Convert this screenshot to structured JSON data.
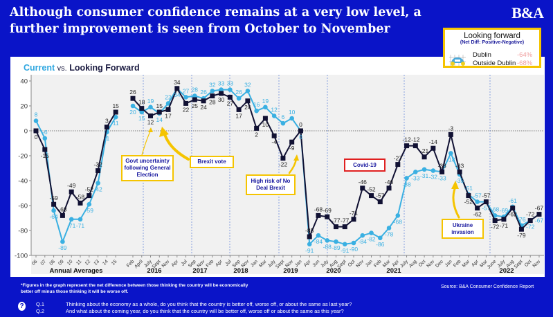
{
  "header": {
    "title": "Although consumer confidence remains at a very low level, a further improvement is seen from October to November",
    "logo": "B&A"
  },
  "legend_box": {
    "title": "Looking forward",
    "subtitle": "(Net Diff: Positive-Negative)",
    "rows": [
      {
        "label": "Dublin",
        "value": "-64%"
      },
      {
        "label": "Outside Dublin",
        "value": "-68%"
      }
    ],
    "icon": "car-icon"
  },
  "chart_subtitle": {
    "current": "Current",
    "vs": "vs.",
    "forward": "Looking Forward"
  },
  "chart_data": {
    "type": "line",
    "ylim": [
      -100,
      40
    ],
    "yticks": [
      40,
      20,
      0,
      -20,
      -40,
      -60,
      -80,
      -100
    ],
    "grid": false,
    "colors": {
      "current": "#111133",
      "forward": "#3ab0e2"
    },
    "annual": {
      "label": "Annual Averages",
      "categories": [
        "06",
        "07",
        "08",
        "09",
        "10",
        "11",
        "12",
        "13",
        "14",
        "15"
      ],
      "current": [
        0,
        -15,
        -59,
        -68,
        -49,
        -58,
        -52,
        -32,
        3,
        15
      ],
      "forward": [
        8,
        -6,
        -64,
        -89,
        -71,
        -71,
        -59,
        -42,
        -1,
        11
      ]
    },
    "monthly": {
      "categories": [
        "Feb",
        "April",
        "July",
        "Sept",
        "Nov",
        "Apr",
        "Jul",
        "Sep",
        "Nov",
        "Feb",
        "Apr",
        "Jul",
        "Sep",
        "Nov",
        "Jan",
        "Mar",
        "July",
        "Sept",
        "Nov",
        "Jan",
        "Apr",
        "Jun",
        "July",
        "Aug",
        "Sept",
        "Oct",
        "Nov",
        "Jan",
        "Feb",
        "Mar",
        "Apr",
        "July",
        "Aug",
        "Oct",
        "Nov",
        "Dec",
        "Jan",
        "Feb",
        "Mar",
        "Apr",
        "Mar",
        "June",
        "July",
        "Aug",
        "Sept",
        "Oct",
        "Nov"
      ],
      "current": [
        26,
        18,
        12,
        15,
        17,
        34,
        22,
        25,
        24,
        28,
        30,
        27,
        17,
        24,
        2,
        10,
        -4,
        -22,
        -9,
        0,
        -85,
        -68,
        -69,
        -77,
        -77,
        -71,
        -46,
        -52,
        -57,
        -46,
        -27,
        -12,
        -12,
        -21,
        -14,
        -33,
        -3,
        -33,
        -52,
        -62,
        -57,
        -72,
        -71,
        -62,
        -79,
        -72,
        -67
      ],
      "forward": [
        20,
        15,
        19,
        14,
        22,
        34,
        27,
        28,
        26,
        32,
        33,
        33,
        26,
        32,
        16,
        19,
        12,
        6,
        10,
        0,
        -91,
        -84,
        -88,
        -89,
        -91,
        -90,
        -84,
        -82,
        -86,
        -78,
        -68,
        -38,
        -33,
        -31,
        -32,
        -33,
        -18,
        -35,
        -51,
        -57,
        -57,
        -68,
        -69,
        -61,
        -76,
        -72,
        -67
      ]
    },
    "years": [
      "2016",
      "2017",
      "2018",
      "2019",
      "2020",
      "2021",
      "2022"
    ],
    "annotations": [
      "Govt uncertainty following General Election",
      "Brexit vote",
      "High risk of No Deal Brexit",
      "Covid-19",
      "Ukraine invasion"
    ]
  },
  "footer": {
    "note_line1": "*Figures in the graph represent the net difference between those thinking the country will be economically",
    "note_line2": "better off minus those thinking it will be worse off.",
    "source": "Source: B&A Consumer Confidence Report",
    "q1_label": "Q.1",
    "q1": "Thinking about the economy as a whole, do you think that the country is better off, worse off, or about the same as last year?",
    "q2_label": "Q.2",
    "q2": "And what about the coming year, do you think that the country will be better off, worse off or about the same as this year?",
    "help_icon": "question-icon"
  }
}
